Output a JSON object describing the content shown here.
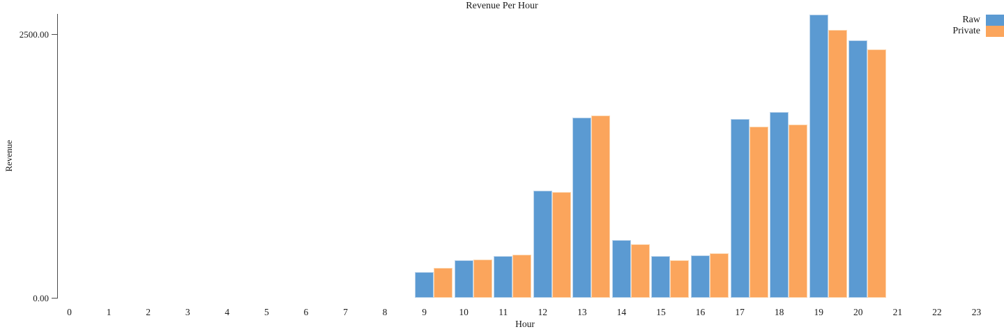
{
  "figure": {
    "background": "#ffffff",
    "axis_color": "#4a4a4a",
    "text_color": "#1a1a1a"
  },
  "chart_data": {
    "type": "bar",
    "title": "Revenue Per Hour",
    "xlabel": "Hour",
    "ylabel": "Revenue",
    "grid": false,
    "legend_position": "top-right",
    "x_tick_labels": [
      "0",
      "1",
      "2",
      "3",
      "4",
      "5",
      "6",
      "7",
      "8",
      "9",
      "10",
      "11",
      "12",
      "13",
      "14",
      "15",
      "16",
      "17",
      "18",
      "19",
      "20",
      "21",
      "22",
      "23"
    ],
    "y_ticks": [
      {
        "value": 0,
        "label": "0.00"
      },
      {
        "value": 2500,
        "label": "2500.00"
      }
    ],
    "ylim": [
      0,
      2694
    ],
    "hours": [
      9,
      10,
      11,
      12,
      13,
      14,
      15,
      16,
      17,
      18,
      19,
      20
    ],
    "series": [
      {
        "name": "Raw",
        "color": "#5b9ad2",
        "edge_color": "#bad3eb",
        "values": [
          245,
          359,
          397,
          1017,
          1709,
          553,
          397,
          406,
          1698,
          1764,
          2688,
          2443
        ]
      },
      {
        "name": "Private",
        "color": "#fba55c",
        "edge_color": "#fdd8b2",
        "values": [
          289,
          368,
          412,
          1008,
          1731,
          513,
          361,
          423,
          1626,
          1645,
          2542,
          2358
        ]
      }
    ]
  }
}
